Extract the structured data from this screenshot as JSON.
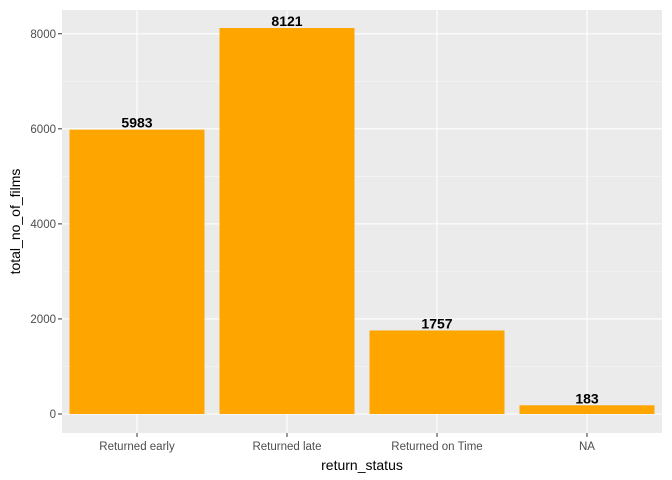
{
  "chart_data": {
    "type": "bar",
    "title": "",
    "xlabel": "return_status",
    "ylabel": "total_no_of_films",
    "categories": [
      "Returned early",
      "Returned late",
      "Returned on Time",
      "NA"
    ],
    "values": [
      5983,
      8121,
      1757,
      183
    ],
    "data_labels": [
      "5983",
      "8121",
      "1757",
      "183"
    ],
    "ylim": [
      -400,
      8500
    ],
    "yticks": [
      0,
      2000,
      4000,
      6000,
      8000
    ],
    "ytick_labels": [
      "0",
      "2000",
      "4000",
      "6000",
      "8000"
    ],
    "grid": true,
    "legend": "none",
    "colors": {
      "bar": "#FFA500",
      "panel_background": "#EBEBEB",
      "grid_major": "#FFFFFF",
      "grid_minor": "#F5F5F5",
      "tick_text": "#4D4D4D",
      "tick_mark": "#333333",
      "text": "#000000"
    }
  }
}
